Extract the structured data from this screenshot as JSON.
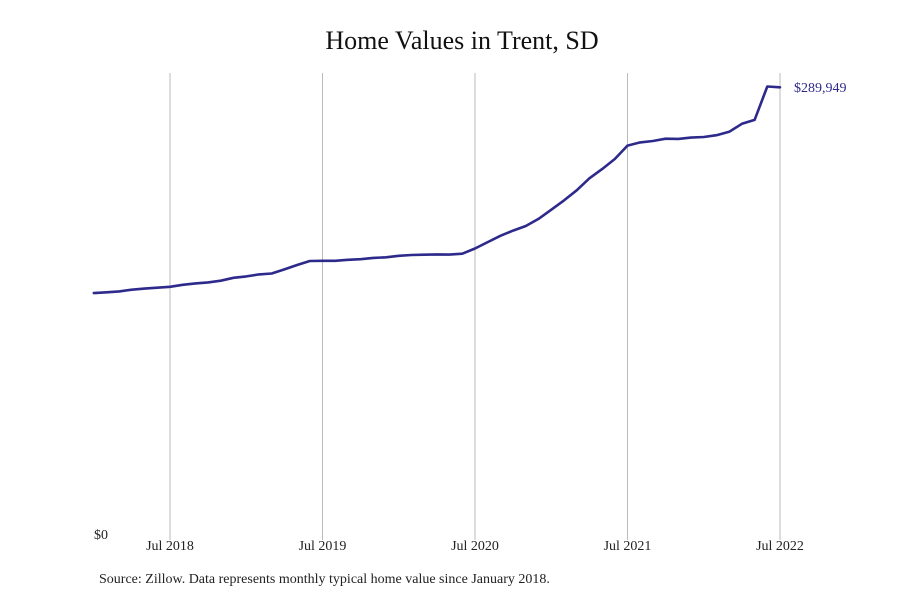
{
  "chart_data": {
    "type": "line",
    "title": "Home Values in Trent, SD",
    "xlabel": "",
    "ylabel": "",
    "y_axis_label": "$0",
    "x_ticks": [
      {
        "date": "2018-07",
        "label": "Jul 2018"
      },
      {
        "date": "2019-07",
        "label": "Jul 2019"
      },
      {
        "date": "2020-07",
        "label": "Jul 2020"
      },
      {
        "date": "2021-07",
        "label": "Jul 2021"
      },
      {
        "date": "2022-07",
        "label": "Jul 2022"
      }
    ],
    "xlim": [
      "2018-01",
      "2022-07"
    ],
    "ylim": [
      0,
      300000
    ],
    "grid": "vertical",
    "series": [
      {
        "color": "#2e2a8c",
        "end_label": "$289,949",
        "points": [
          [
            "2018-01",
            155200
          ],
          [
            "2018-02",
            155700
          ],
          [
            "2018-03",
            156300
          ],
          [
            "2018-04",
            157400
          ],
          [
            "2018-05",
            158100
          ],
          [
            "2018-06",
            158700
          ],
          [
            "2018-07",
            159300
          ],
          [
            "2018-08",
            160600
          ],
          [
            "2018-09",
            161500
          ],
          [
            "2018-10",
            162200
          ],
          [
            "2018-11",
            163300
          ],
          [
            "2018-12",
            165200
          ],
          [
            "2019-01",
            166100
          ],
          [
            "2019-02",
            167400
          ],
          [
            "2019-03",
            168000
          ],
          [
            "2019-04",
            170700
          ],
          [
            "2019-05",
            173600
          ],
          [
            "2019-06",
            176200
          ],
          [
            "2019-07",
            176300
          ],
          [
            "2019-08",
            176300
          ],
          [
            "2019-09",
            177000
          ],
          [
            "2019-10",
            177400
          ],
          [
            "2019-11",
            178200
          ],
          [
            "2019-12",
            178600
          ],
          [
            "2020-01",
            179600
          ],
          [
            "2020-02",
            180100
          ],
          [
            "2020-03",
            180300
          ],
          [
            "2020-04",
            180500
          ],
          [
            "2020-05",
            180400
          ],
          [
            "2020-06",
            181000
          ],
          [
            "2020-07",
            184400
          ],
          [
            "2020-08",
            188600
          ],
          [
            "2020-09",
            192700
          ],
          [
            "2020-10",
            196100
          ],
          [
            "2020-11",
            199100
          ],
          [
            "2020-12",
            203800
          ],
          [
            "2021-01",
            209800
          ],
          [
            "2021-02",
            215900
          ],
          [
            "2021-03",
            222500
          ],
          [
            "2021-04",
            230400
          ],
          [
            "2021-05",
            236400
          ],
          [
            "2021-06",
            243000
          ],
          [
            "2021-07",
            251800
          ],
          [
            "2021-08",
            253900
          ],
          [
            "2021-09",
            254800
          ],
          [
            "2021-10",
            256300
          ],
          [
            "2021-11",
            256200
          ],
          [
            "2021-12",
            257000
          ],
          [
            "2022-01",
            257400
          ],
          [
            "2022-02",
            258600
          ],
          [
            "2022-03",
            260800
          ],
          [
            "2022-04",
            266100
          ],
          [
            "2022-05",
            268600
          ],
          [
            "2022-06",
            290500
          ],
          [
            "2022-07",
            289949
          ]
        ]
      }
    ],
    "source_note": "Source: Zillow. Data represents monthly typical home value since January 2018."
  }
}
